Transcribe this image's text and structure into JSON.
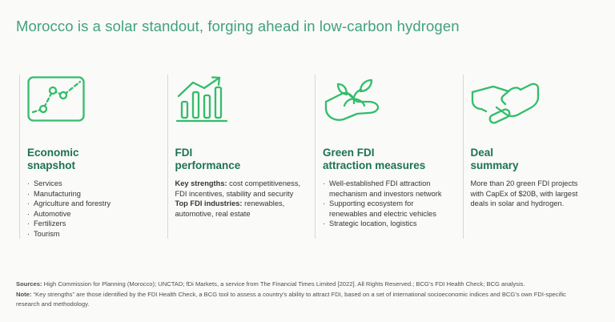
{
  "title": "Morocco is a solar standout, forging ahead in low-carbon hydrogen",
  "bullet_marker": "·",
  "colors": {
    "background": "#fafaf8",
    "title_green": "#41a182",
    "heading_green": "#1d7352",
    "icon_green": "#33bd6b",
    "body_text": "#363636",
    "divider": "#d8d8d5",
    "footer_text": "#4f4f4f"
  },
  "columns": [
    {
      "icon": "line-chart-icon",
      "heading": "Economic\nsnapshot",
      "bullets": [
        "Services",
        "Manufacturing",
        "Agriculture and forestry",
        "Automotive",
        "Fertilizers",
        "Tourism"
      ]
    },
    {
      "icon": "bar-chart-icon",
      "heading": "FDI\nperformance",
      "segments": [
        {
          "bold": "Key strengths:",
          "text": " cost competitiveness, FDI incentives, stability and security"
        },
        {
          "bold": "Top FDI industries:",
          "text": " renewables, automotive, real estate"
        }
      ]
    },
    {
      "icon": "hand-plant-icon",
      "heading": "Green FDI\nattraction measures",
      "bullets": [
        "Well-established FDI attraction mechanism and investors network",
        "Supporting ecosystem for renewables and electric vehicles",
        "Strategic location, logistics"
      ]
    },
    {
      "icon": "handshake-icon",
      "heading": "Deal\nsummary",
      "paragraph": "More than 20 green FDI projects with CapEx of $20B, with largest deals in solar and hydrogen."
    }
  ],
  "footer": {
    "sources_label": "Sources:",
    "sources_text": " High Commission for Planning (Morocco); UNCTAD; fDi Markets, a service from The Financial Times Limited [2022]. All Rights Reserved.; BCG’s FDI Health Check; BCG analysis.",
    "note_label": "Note:",
    "note_text": " “Key strengths” are those identified by the FDI Health Check, a BCG tool to assess a country’s ability to attract FDI, based on a set of international socioeconomic indices and BCG’s own FDI-specific research and methodology."
  }
}
